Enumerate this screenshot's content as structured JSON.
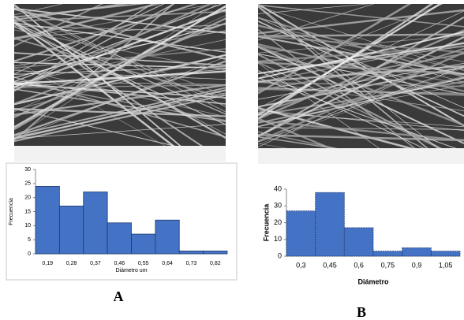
{
  "chart_data": [
    {
      "type": "bar",
      "panel_label": "A",
      "y_label": "Frecuencia",
      "x_label": "Diámetro um",
      "categories": [
        "0,19",
        "0,28",
        "0,37",
        "0,46",
        "0,55",
        "0,64",
        "0,73",
        "0,82"
      ],
      "values": [
        24,
        17,
        22,
        11,
        7,
        12,
        1,
        1
      ],
      "color": "#4472c4",
      "ylim": [
        0,
        30
      ],
      "yticks": [
        0,
        5,
        10,
        15,
        20,
        25,
        30
      ]
    },
    {
      "type": "bar",
      "panel_label": "B",
      "y_label": "Frecuencia",
      "x_label": "Diámetro",
      "categories": [
        "0,3",
        "0,45",
        "0,6",
        "0,75",
        "0,9",
        "1,05"
      ],
      "values": [
        27,
        38,
        17,
        3,
        5,
        3
      ],
      "color": "#4472c4",
      "ylim": [
        0,
        40
      ],
      "yticks": [
        0,
        10,
        20,
        30,
        40
      ]
    }
  ]
}
